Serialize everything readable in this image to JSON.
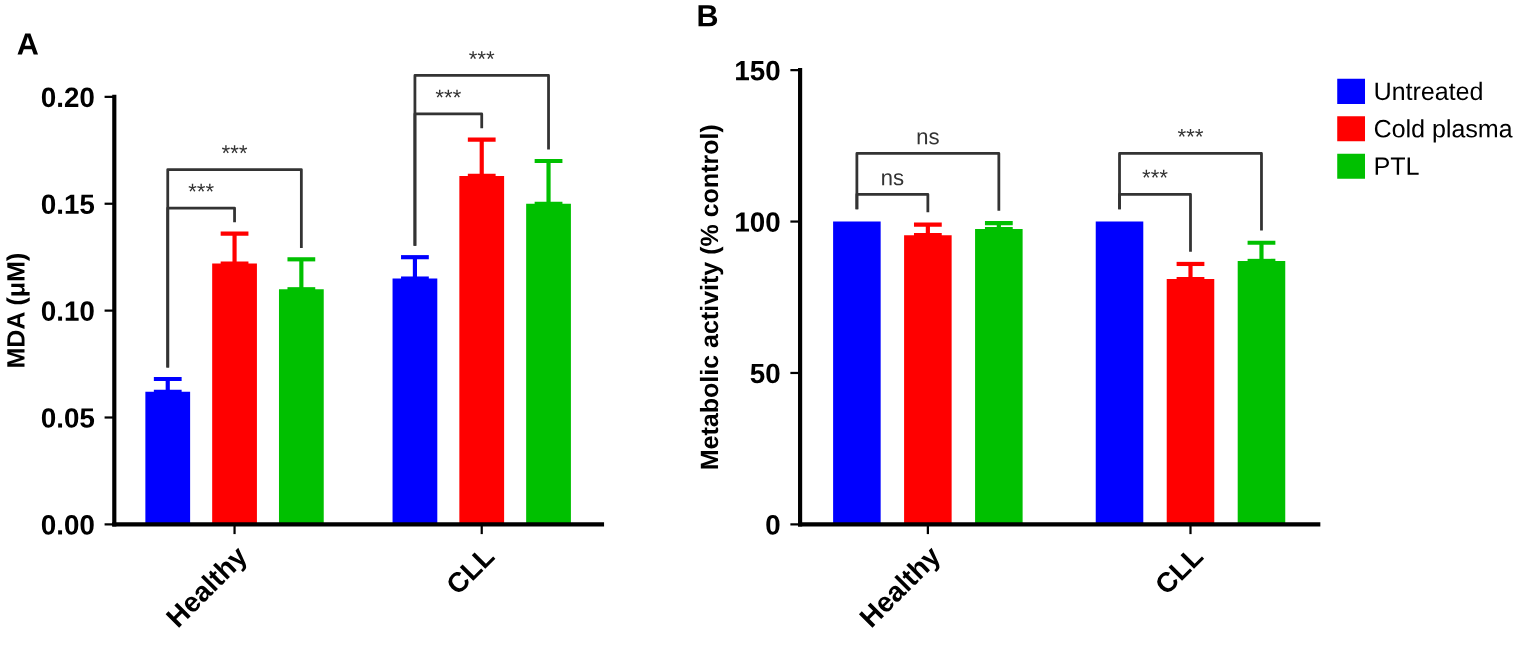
{
  "chart_data": [
    {
      "type": "bar",
      "title": "A",
      "ylabel": "MDA (μM)",
      "categories": [
        "Healthy",
        "CLL"
      ],
      "series": [
        {
          "color": "#0000ff",
          "values": [
            0.062,
            0.115
          ],
          "errors": [
            0.006,
            0.01
          ]
        },
        {
          "color": "#ff0000",
          "values": [
            0.122,
            0.163
          ],
          "errors": [
            0.014,
            0.017
          ]
        },
        {
          "color": "#00c000",
          "values": [
            0.11,
            0.15
          ],
          "errors": [
            0.014,
            0.02
          ]
        }
      ],
      "ylim": [
        0,
        0.2
      ],
      "yticks": [
        {
          "value": 0,
          "label": "0.00"
        },
        {
          "value": 0.05,
          "label": "0.05"
        },
        {
          "value": 0.1,
          "label": "0.10"
        },
        {
          "value": 0.15,
          "label": "0.15"
        },
        {
          "value": 0.2,
          "label": "0.20"
        }
      ],
      "grid": false,
      "annotations": [
        "***",
        "***",
        "***",
        "***"
      ]
    },
    {
      "type": "bar",
      "title": "B",
      "ylabel": "Metabolic activity (% control)",
      "categories": [
        "Healthy",
        "CLL"
      ],
      "series": [
        {
          "name": "Untreated",
          "color": "#0000ff",
          "values": [
            100,
            100
          ]
        },
        {
          "name": "Cold plasma",
          "color": "#ff0000",
          "values": [
            95.5,
            81
          ],
          "errors": [
            3.5,
            5
          ]
        },
        {
          "name": "PTL",
          "color": "#00c000",
          "values": [
            97.5,
            87
          ],
          "errors": [
            2,
            6
          ]
        }
      ],
      "ylim": [
        0,
        150
      ],
      "yticks": [
        0,
        50,
        100,
        150
      ],
      "grid": false,
      "legend": "right",
      "annotations": [
        "ns",
        "ns",
        "***",
        "***"
      ]
    }
  ]
}
